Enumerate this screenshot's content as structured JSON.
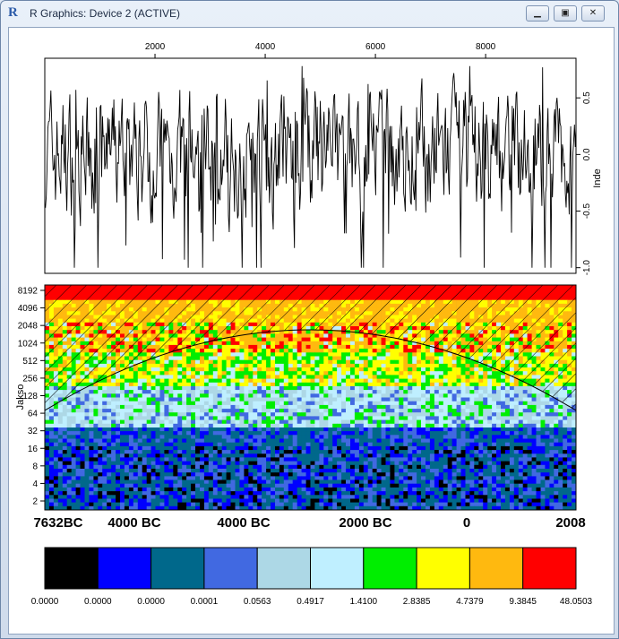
{
  "window": {
    "title": "R Graphics: Device 2 (ACTIVE)",
    "minimize_icon": "minimize-icon",
    "maximize_icon": "maximize-icon",
    "close_icon": "close-icon"
  },
  "chart_data": [
    {
      "type": "line",
      "panel": "time-series",
      "x_ticks": [
        "2000",
        "4000",
        "6000",
        "8000"
      ],
      "y_ticks": [
        "0.5",
        "0.0",
        "-0.5",
        "-1.0"
      ],
      "ylabel": "Inde",
      "ylim": [
        -1.05,
        0.85
      ],
      "xlim": [
        0,
        9640
      ],
      "color": "#000000"
    },
    {
      "type": "heatmap",
      "panel": "wavelet-power",
      "ylabel": "Jakso",
      "y_ticks": [
        "8192",
        "4096",
        "2048",
        "1024",
        "512",
        "256",
        "128",
        "64",
        "32",
        "16",
        "8",
        "4",
        "2"
      ],
      "x_labels": [
        "7632BC",
        "4000 BC",
        "4000 BC",
        "2000 BC",
        "0",
        "2008"
      ],
      "colorscale": [
        "#000000",
        "#0000ff",
        "#00688b",
        "#4169e1",
        "#add8e6",
        "#bfefff",
        "#00ee00",
        "#ffff00",
        "#ffb90f",
        "#ff0000"
      ],
      "legend_labels": [
        "0.0000",
        "0.0000",
        "0.0000",
        "0.0001",
        "0.0563",
        "0.4917",
        "1.4100",
        "2.8385",
        "4.7379",
        "9.3845",
        "48.0503"
      ]
    }
  ]
}
